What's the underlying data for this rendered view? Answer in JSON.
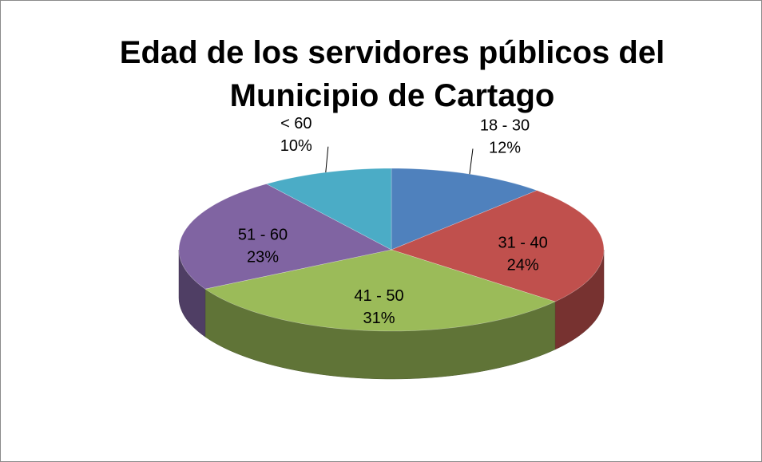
{
  "chart_data": {
    "type": "pie",
    "title": "Edad de los servidores públicos del Municipio de Cartago",
    "categories": [
      "18 - 30",
      "31 - 40",
      "41 - 50",
      "51 - 60",
      "< 60"
    ],
    "values": [
      12,
      24,
      31,
      23,
      10
    ],
    "value_labels": [
      "12%",
      "24%",
      "31%",
      "23%",
      "10%"
    ],
    "colors": [
      "#4f81bd",
      "#c0504d",
      "#9bbb59",
      "#8064a2",
      "#4bacc6"
    ],
    "three_d": true
  }
}
